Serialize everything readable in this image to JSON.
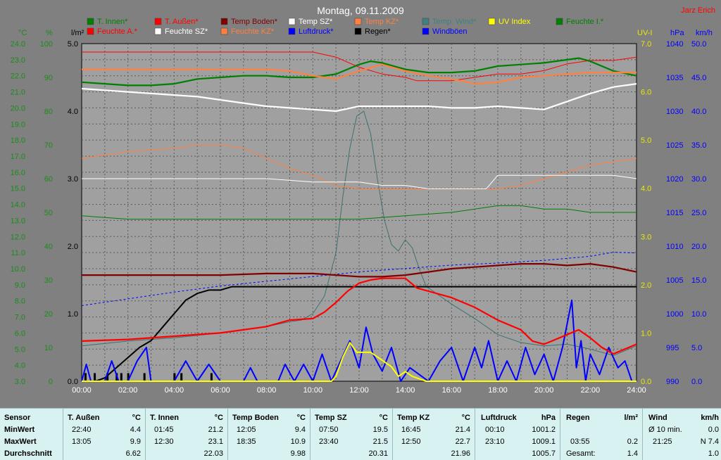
{
  "chart_data": {
    "type": "line",
    "title": "Montag, 09.11.2009",
    "author": "Jarz Erich",
    "x_ticks": [
      "00:00",
      "02:00",
      "04:00",
      "06:00",
      "08:00",
      "10:00",
      "12:00",
      "14:00",
      "16:00",
      "18:00",
      "20:00",
      "22:00",
      "24:00"
    ],
    "axes": [
      {
        "unit": "°C",
        "color": "#1a8c1a",
        "ticks": [
          "3.0",
          "4.0",
          "5.0",
          "6.0",
          "7.0",
          "8.0",
          "9.0",
          "10.0",
          "11.0",
          "12.0",
          "13.0",
          "14.0",
          "15.0",
          "16.0",
          "17.0",
          "18.0",
          "19.0",
          "20.0",
          "21.0",
          "22.0",
          "23.0",
          "24.0"
        ],
        "ylim": [
          3,
          24
        ]
      },
      {
        "unit": "%",
        "color": "#1a8c1a",
        "ticks": [
          "0",
          "10",
          "20",
          "30",
          "40",
          "50",
          "60",
          "70",
          "80",
          "90",
          "100"
        ],
        "ylim": [
          0,
          100
        ]
      },
      {
        "unit": "l/m²",
        "color": "#000000",
        "ticks": [
          "0.0",
          "1.0",
          "2.0",
          "3.0",
          "4.0",
          "5.0"
        ],
        "ylim": [
          0,
          5
        ]
      },
      {
        "unit": "UV-I",
        "color": "#e8e800",
        "ticks": [
          "0.0",
          "1.0",
          "2.0",
          "3.0",
          "4.0",
          "5.0",
          "6.0",
          "7.0"
        ],
        "ylim": [
          0,
          7
        ]
      },
      {
        "unit": "hPa",
        "color": "#0000ff",
        "ticks": [
          "990",
          "995",
          "1000",
          "1005",
          "1010",
          "1015",
          "1020",
          "1025",
          "1030",
          "1035",
          "1040"
        ],
        "ylim": [
          990,
          1040
        ]
      },
      {
        "unit": "km/h",
        "color": "#0000ff",
        "ticks": [
          "0.0",
          "5.0",
          "10.0",
          "15.0",
          "20.0",
          "25.0",
          "30.0",
          "35.0",
          "40.0",
          "45.0",
          "50.0"
        ],
        "ylim": [
          0,
          50
        ]
      }
    ],
    "legend": [
      {
        "label": "T. Innen*",
        "color": "#008000"
      },
      {
        "label": "T. Außen*",
        "color": "#ff0000"
      },
      {
        "label": "Temp Boden*",
        "color": "#800000"
      },
      {
        "label": "Temp SZ*",
        "color": "#ffffff"
      },
      {
        "label": "Temp KZ*",
        "color": "#ff8040"
      },
      {
        "label": "Temp. Wind*",
        "color": "#408080"
      },
      {
        "label": "UV Index",
        "color": "#ffff00"
      },
      {
        "label": "Feuchte I.*",
        "color": "#008000"
      },
      {
        "label": "Feuchte A.*",
        "color": "#ff0000"
      },
      {
        "label": "Feuchte SZ*",
        "color": "#ffffff"
      },
      {
        "label": "Feuchte KZ*",
        "color": "#ff8040"
      },
      {
        "label": "Luftdruck*",
        "color": "#0000ff"
      },
      {
        "label": "Regen*",
        "color": "#000000"
      },
      {
        "label": "Windböen",
        "color": "#0000ff"
      }
    ],
    "series": [
      {
        "name": "T. Außen*",
        "color": "#ff0000",
        "width": 2.2,
        "x": [
          0,
          2,
          4,
          6,
          8,
          9,
          10,
          10.5,
          11,
          11.5,
          12,
          12.5,
          13,
          13.5,
          14,
          14.5,
          15,
          16,
          17,
          18,
          19,
          19.5,
          20,
          20.5,
          21,
          21.5,
          22,
          22.5,
          23,
          24
        ],
        "y": [
          5.5,
          5.6,
          5.8,
          6.0,
          6.4,
          6.8,
          6.9,
          7.3,
          7.9,
          8.6,
          9.1,
          9.3,
          9.4,
          9.4,
          9.4,
          8.8,
          8.6,
          8.2,
          7.6,
          6.8,
          6.2,
          5.5,
          5.3,
          5.6,
          5.9,
          6.2,
          5.7,
          5.1,
          4.7,
          5.3
        ]
      },
      {
        "name": "T. Innen*",
        "color": "#008000",
        "width": 2.2,
        "x": [
          0,
          1,
          2,
          3,
          4,
          5,
          6,
          7,
          8,
          9,
          10,
          11,
          12,
          12.5,
          13,
          14,
          15,
          16,
          17,
          18,
          19,
          20,
          21,
          21.5,
          22,
          23,
          24
        ],
        "y": [
          21.6,
          21.5,
          21.4,
          21.4,
          21.5,
          21.8,
          21.9,
          22.0,
          22.0,
          21.9,
          21.9,
          22.1,
          22.7,
          22.9,
          22.8,
          22.4,
          22.2,
          22.2,
          22.3,
          22.6,
          22.7,
          22.8,
          23.0,
          23.1,
          22.9,
          22.3,
          22.0
        ]
      },
      {
        "name": "Temp KZ*",
        "color": "#ff8040",
        "width": 2.2,
        "x": [
          0,
          2,
          4,
          6,
          8,
          9,
          10,
          11,
          12,
          13,
          14,
          15,
          16,
          17,
          18,
          19,
          20,
          21,
          22,
          23,
          24
        ],
        "y": [
          22.4,
          22.4,
          22.4,
          22.4,
          22.4,
          22.3,
          22.0,
          21.8,
          22.3,
          22.7,
          22.3,
          22.0,
          21.8,
          21.5,
          21.6,
          21.9,
          22.0,
          22.1,
          22.2,
          22.2,
          22.2
        ]
      },
      {
        "name": "Temp SZ*",
        "color": "#ffffff",
        "width": 2.2,
        "x": [
          0,
          1,
          2,
          3,
          4,
          5,
          6,
          7,
          8,
          9,
          10,
          11,
          12,
          13,
          14,
          15,
          16,
          17,
          18,
          19,
          20,
          21,
          22,
          23,
          24
        ],
        "y": [
          21.2,
          21.1,
          21.0,
          20.9,
          20.8,
          20.7,
          20.5,
          20.3,
          20.1,
          20.0,
          19.9,
          19.8,
          20.1,
          20.1,
          20.1,
          20.1,
          20.0,
          20.0,
          20.1,
          20.0,
          19.9,
          20.4,
          20.9,
          21.3,
          21.5
        ]
      },
      {
        "name": "Temp Boden*",
        "color": "#800000",
        "width": 2.2,
        "x": [
          0,
          2,
          4,
          6,
          8,
          10,
          11,
          12,
          13,
          14,
          15,
          16,
          17,
          18,
          19,
          20,
          21,
          22,
          23,
          24
        ],
        "y": [
          9.6,
          9.6,
          9.6,
          9.6,
          9.7,
          9.7,
          9.6,
          9.5,
          9.5,
          9.6,
          9.8,
          10.0,
          10.1,
          10.2,
          10.3,
          10.3,
          10.2,
          10.3,
          10.1,
          9.8
        ]
      },
      {
        "name": "Temp. Wind*",
        "color": "#407070",
        "width": 1,
        "x": [
          0,
          2,
          4,
          6,
          8,
          9,
          9.5,
          10,
          10.5,
          11,
          11.3,
          11.6,
          11.9,
          12.2,
          12.5,
          12.8,
          13.1,
          13.4,
          13.7,
          14,
          14.3,
          14.6,
          14.9,
          15.2,
          15.5,
          16,
          17,
          18,
          19,
          20,
          21,
          22,
          23,
          24
        ],
        "y": [
          5.2,
          5.5,
          5.7,
          6.0,
          6.4,
          6.7,
          6.8,
          7.2,
          8.3,
          11.0,
          14.5,
          17.5,
          19.5,
          19.8,
          18.4,
          15.5,
          13.0,
          11.5,
          11.1,
          11.8,
          11.3,
          10.0,
          8.9,
          8.6,
          8.3,
          7.8,
          6.9,
          5.9,
          5.4,
          5.2,
          5.3,
          5.0,
          4.6,
          5.2
        ]
      },
      {
        "name": "Feuchte A.*",
        "color": "#ff0000",
        "width": 1,
        "axis": 1,
        "x": [
          0,
          2,
          4,
          6,
          8,
          10,
          11,
          12,
          13,
          14,
          14.5,
          15,
          16,
          17,
          18,
          19,
          20,
          21,
          22,
          23,
          24
        ],
        "y": [
          97.5,
          97.5,
          97.5,
          97.5,
          97.5,
          97.5,
          96,
          93,
          91,
          90,
          89,
          89,
          89,
          90,
          91,
          91,
          92,
          94,
          95,
          95,
          96
        ]
      },
      {
        "name": "Feuchte KZ*",
        "color": "#ff8040",
        "width": 1,
        "axis": 1,
        "x": [
          0,
          2,
          4,
          5,
          6,
          7,
          8,
          9,
          10,
          11,
          12,
          13,
          14,
          15,
          16,
          17,
          18,
          19,
          20,
          21,
          22,
          23,
          24
        ],
        "y": [
          66,
          68,
          69,
          70,
          70,
          69,
          66,
          63,
          61,
          58,
          57,
          57,
          57,
          57,
          57,
          57,
          57,
          58,
          60,
          62,
          64,
          65,
          66
        ]
      },
      {
        "name": "Feuchte SZ*",
        "color": "#ffffff",
        "width": 1,
        "axis": 1,
        "x": [
          0,
          2,
          4,
          6,
          8,
          10,
          11,
          12,
          13,
          14,
          15,
          16,
          17,
          17.5,
          18,
          19,
          20,
          21,
          22,
          23,
          24
        ],
        "y": [
          60,
          60,
          60,
          60,
          60,
          59,
          59,
          59,
          58,
          58,
          57,
          57,
          57,
          57,
          61,
          61,
          61,
          61,
          61,
          61,
          60
        ]
      },
      {
        "name": "Feuchte I.*",
        "color": "#008000",
        "width": 1,
        "axis": 1,
        "x": [
          0,
          2,
          4,
          6,
          8,
          10,
          12,
          14,
          16,
          17,
          18,
          19,
          20,
          21,
          22,
          23,
          24
        ],
        "y": [
          49,
          48,
          48,
          48,
          48,
          48,
          48,
          49,
          50,
          51,
          52,
          52,
          51,
          51,
          50,
          50,
          50
        ]
      },
      {
        "name": "Luftdruck*",
        "color": "#0000ff",
        "width": 1,
        "dashed": true,
        "axis": 4,
        "x": [
          0,
          2,
          4,
          6,
          8,
          10,
          12,
          14,
          16,
          18,
          20,
          22,
          23,
          24
        ],
        "y": [
          1001.2,
          1002.2,
          1003.2,
          1004.1,
          1004.8,
          1005.5,
          1006.2,
          1006.7,
          1007.2,
          1007.5,
          1007.9,
          1008.5,
          1009.1,
          1009.0
        ]
      },
      {
        "name": "Regen*",
        "color": "#000000",
        "width": 2,
        "axis": 2,
        "x": [
          0,
          0.6,
          1.0,
          1.5,
          2.0,
          2.5,
          3.0,
          3.5,
          4.0,
          4.5,
          5.0,
          5.5,
          6.0,
          6.5,
          7.0,
          8,
          10,
          12,
          14,
          16,
          18,
          20,
          22,
          24
        ],
        "y": [
          0.0,
          0.0,
          0.05,
          0.2,
          0.35,
          0.5,
          0.6,
          0.8,
          1.0,
          1.2,
          1.3,
          1.35,
          1.35,
          1.4,
          1.4,
          1.4,
          1.4,
          1.4,
          1.4,
          1.4,
          1.4,
          1.4,
          1.4,
          1.4
        ]
      },
      {
        "name": "Windböen",
        "color": "#0000ff",
        "width": 2,
        "axis": 5,
        "x": [
          0,
          0.2,
          0.4,
          1.0,
          1.3,
          1.6,
          2.0,
          2.4,
          2.8,
          3.0,
          3.4,
          4.0,
          4.5,
          5.0,
          5.5,
          6.0,
          7.0,
          7.3,
          7.6,
          8.5,
          8.8,
          9.2,
          9.6,
          10.0,
          10.4,
          10.8,
          11.2,
          11.6,
          12.0,
          12.3,
          12.6,
          13.0,
          13.4,
          13.8,
          14.2,
          14.6,
          15.0,
          15.5,
          16.0,
          16.5,
          17.0,
          17.3,
          17.6,
          18.0,
          18.4,
          18.8,
          19.2,
          19.6,
          20.0,
          20.4,
          20.8,
          21.2,
          21.4,
          21.6,
          21.8,
          22.0,
          22.4,
          22.8,
          23.2,
          23.5,
          23.8,
          24.0
        ],
        "y": [
          0,
          2.5,
          0,
          0,
          3,
          0,
          0,
          3,
          5,
          0,
          0,
          0,
          3,
          0,
          2.5,
          0,
          0,
          2,
          0,
          0,
          2.5,
          0,
          2.5,
          0,
          4,
          0,
          3,
          6,
          2,
          8,
          4,
          1.5,
          5,
          0,
          2,
          1,
          0,
          3,
          5,
          0,
          5,
          2,
          6,
          0,
          3,
          0,
          5,
          1,
          4,
          0,
          5,
          12,
          2,
          6,
          0,
          4,
          1,
          5,
          2,
          3,
          0,
          0
        ]
      },
      {
        "name": "UV Index",
        "color": "#ffff00",
        "width": 2,
        "axis": 3,
        "x": [
          0,
          10.8,
          11.0,
          11.3,
          11.6,
          11.9,
          12.2,
          12.5,
          12.8,
          13.1,
          13.4,
          13.7,
          14.0,
          14.3,
          14.6,
          14.9,
          24
        ],
        "y": [
          0,
          0,
          0.1,
          0.5,
          0.8,
          0.6,
          0.6,
          0.6,
          0.5,
          0.4,
          0.3,
          0.1,
          0.2,
          0.1,
          0.05,
          0,
          0
        ]
      }
    ],
    "rain_bars": [
      {
        "x": 0.15,
        "v": 0.12
      },
      {
        "x": 0.55,
        "v": 0.12
      },
      {
        "x": 1.1,
        "v": 0.12
      },
      {
        "x": 1.5,
        "v": 0.12
      },
      {
        "x": 1.7,
        "v": 0.12
      },
      {
        "x": 2.0,
        "v": 0.12
      },
      {
        "x": 2.7,
        "v": 0.12
      },
      {
        "x": 4.0,
        "v": 0.12
      },
      {
        "x": 4.3,
        "v": 0.12
      },
      {
        "x": 5.6,
        "v": 0.12
      }
    ]
  },
  "stats": {
    "row_labels": [
      "Sensor",
      "MinWert",
      "MaxWert",
      "Durchschnitt"
    ],
    "columns": [
      {
        "title": "T. Außen",
        "unit": "°C",
        "min_time": "22:40",
        "min": "4.4",
        "max_time": "13:05",
        "max": "9.9",
        "avg": "6.62"
      },
      {
        "title": "T. Innen",
        "unit": "°C",
        "min_time": "01:45",
        "min": "21.2",
        "max_time": "12:30",
        "max": "23.1",
        "avg": "22.03"
      },
      {
        "title": "Temp Boden",
        "unit": "°C",
        "min_time": "12:05",
        "min": "9.4",
        "max_time": "18:35",
        "max": "10.9",
        "avg": "9.98"
      },
      {
        "title": "Temp SZ",
        "unit": "°C",
        "min_time": "07:50",
        "min": "19.5",
        "max_time": "23:40",
        "max": "21.5",
        "avg": "20.31"
      },
      {
        "title": "Temp KZ",
        "unit": "°C",
        "min_time": "16:45",
        "min": "21.4",
        "max_time": "12:50",
        "max": "22.7",
        "avg": "21.96"
      },
      {
        "title": "Luftdruck",
        "unit": "hPa",
        "min_time": "00:10",
        "min": "1001.2",
        "max_time": "23:10",
        "max": "1009.1",
        "avg": "1005.7"
      },
      {
        "title": "Regen",
        "unit": "l/m²",
        "min_time": "",
        "min": "",
        "max_time": "03:55",
        "max": "0.2",
        "avg_label": "Gesamt:",
        "avg": "1.4"
      },
      {
        "title": "Wind",
        "unit": "km/h",
        "min_time": "Ø 10 min.",
        "min": "0.0",
        "max_time": "21:25",
        "max": "N 7.4",
        "avg": "1.0"
      }
    ]
  }
}
